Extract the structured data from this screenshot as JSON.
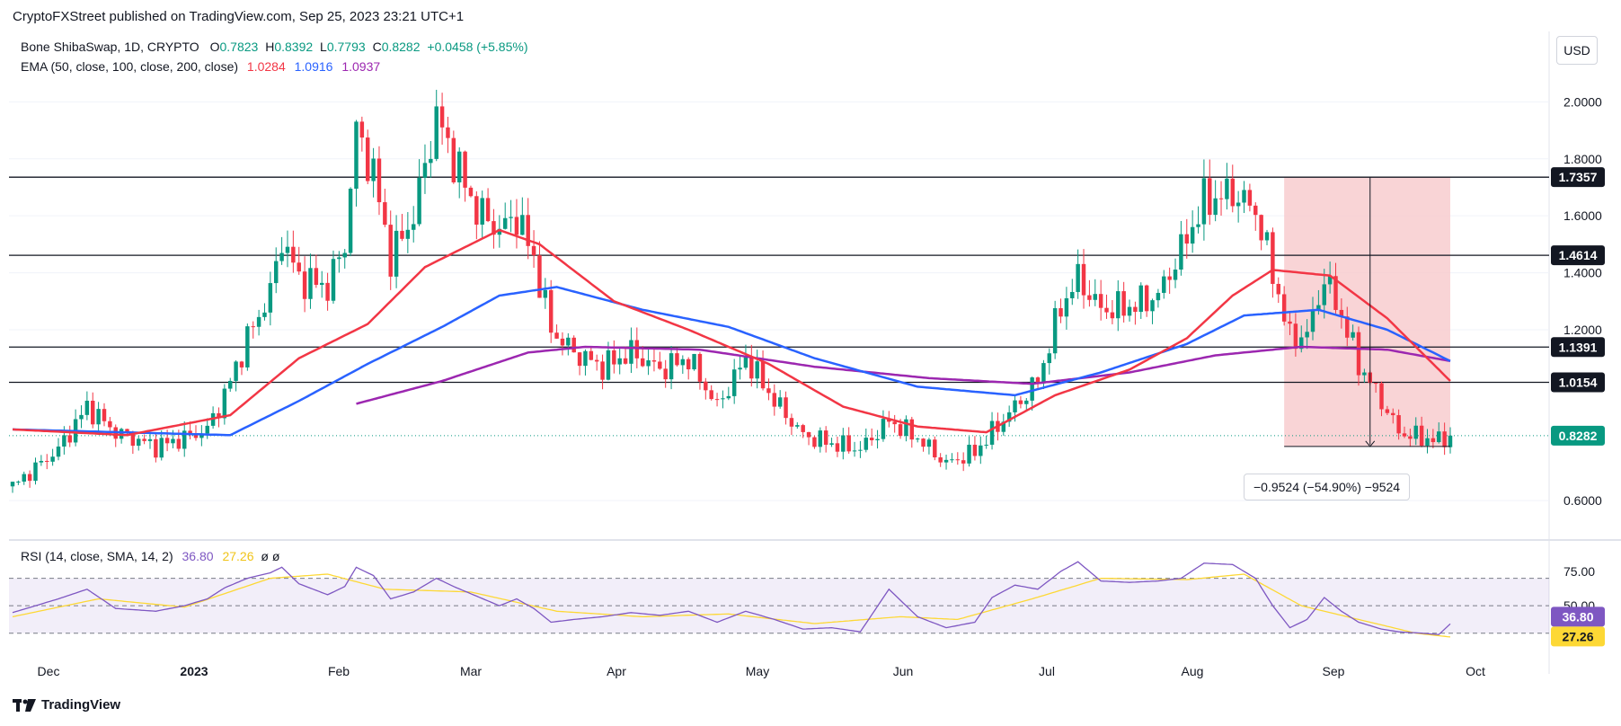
{
  "header": {
    "publisher": "CryptoFXStreet published on TradingView.com, Sep 25, 2023 23:21 UTC+1"
  },
  "legend": {
    "symbol": "Bone ShibaSwap, 1D, CRYPTO",
    "open_label": "O",
    "open": "0.7823",
    "high_label": "H",
    "high": "0.8392",
    "low_label": "L",
    "low": "0.7793",
    "close_label": "C",
    "close": "0.8282",
    "change": "+0.0458 (+5.85%)",
    "ema_label": "EMA (50, close, 100, close, 200, close)",
    "ema50": "1.0284",
    "ema100": "1.0916",
    "ema200": "1.0937",
    "rsi_label": "RSI (14, close, SMA, 14, 2)",
    "rsi_value": "36.80",
    "rsi_sma": "27.26",
    "rsi_extra": "ø ø"
  },
  "currency_button": "USD",
  "measure_label": "−0.9524 (−54.90%) −9524",
  "footer_brand": "TradingView",
  "colors": {
    "up": "#089981",
    "down": "#f23645",
    "ema50": "#f23645",
    "ema100": "#2962ff",
    "ema200": "#9c27b0",
    "rsi": "#7e57c2",
    "rsi_sma": "#fdd835",
    "measure_fill": "#f7c9cc"
  },
  "chart_data": {
    "type": "candlestick",
    "price_axis": {
      "ticks": [
        "2.0000",
        "1.8000",
        "1.6000",
        "1.4000",
        "1.2000",
        "0.6000"
      ],
      "ylim": [
        0.55,
        2.2
      ]
    },
    "rsi_axis": {
      "ticks": [
        "75.00",
        "50.00"
      ],
      "ylim": [
        20,
        90
      ]
    },
    "x_axis": {
      "ticks": [
        "Dec",
        "2023",
        "Feb",
        "Mar",
        "Apr",
        "May",
        "Jun",
        "Jul",
        "Aug",
        "Sep",
        "Oct"
      ]
    },
    "horizontal_levels": [
      "1.7357",
      "1.4614",
      "1.1391",
      "1.0154"
    ],
    "last_price": "0.8282",
    "last_rsi": "36.80",
    "last_rsi_sma": "27.26",
    "anchors": [
      {
        "d": 0,
        "c": 0.65
      },
      {
        "d": 8,
        "c": 0.78
      },
      {
        "d": 13,
        "c": 0.93
      },
      {
        "d": 18,
        "c": 0.84
      },
      {
        "d": 25,
        "c": 0.79
      },
      {
        "d": 30,
        "c": 0.82
      },
      {
        "d": 34,
        "c": 0.85
      },
      {
        "d": 37,
        "c": 0.97
      },
      {
        "d": 41,
        "c": 1.17
      },
      {
        "d": 45,
        "c": 1.33
      },
      {
        "d": 47,
        "c": 1.52
      },
      {
        "d": 50,
        "c": 1.38
      },
      {
        "d": 55,
        "c": 1.35
      },
      {
        "d": 58,
        "c": 1.5
      },
      {
        "d": 60,
        "c": 1.9
      },
      {
        "d": 63,
        "c": 1.75
      },
      {
        "d": 66,
        "c": 1.45
      },
      {
        "d": 70,
        "c": 1.6
      },
      {
        "d": 74,
        "c": 1.95
      },
      {
        "d": 77,
        "c": 1.8
      },
      {
        "d": 81,
        "c": 1.62
      },
      {
        "d": 85,
        "c": 1.55
      },
      {
        "d": 88,
        "c": 1.6
      },
      {
        "d": 91,
        "c": 1.45
      },
      {
        "d": 94,
        "c": 1.2
      },
      {
        "d": 98,
        "c": 1.12
      },
      {
        "d": 103,
        "c": 1.07
      },
      {
        "d": 108,
        "c": 1.12
      },
      {
        "d": 113,
        "c": 1.06
      },
      {
        "d": 118,
        "c": 1.1
      },
      {
        "d": 123,
        "c": 0.93
      },
      {
        "d": 128,
        "c": 1.1
      },
      {
        "d": 133,
        "c": 0.95
      },
      {
        "d": 138,
        "c": 0.83
      },
      {
        "d": 143,
        "c": 0.8
      },
      {
        "d": 148,
        "c": 0.78
      },
      {
        "d": 153,
        "c": 0.88
      },
      {
        "d": 158,
        "c": 0.82
      },
      {
        "d": 163,
        "c": 0.73
      },
      {
        "d": 168,
        "c": 0.77
      },
      {
        "d": 171,
        "c": 0.84
      },
      {
        "d": 175,
        "c": 0.93
      },
      {
        "d": 179,
        "c": 1.02
      },
      {
        "d": 183,
        "c": 1.28
      },
      {
        "d": 186,
        "c": 1.38
      },
      {
        "d": 190,
        "c": 1.27
      },
      {
        "d": 195,
        "c": 1.28
      },
      {
        "d": 200,
        "c": 1.32
      },
      {
        "d": 204,
        "c": 1.48
      },
      {
        "d": 208,
        "c": 1.65
      },
      {
        "d": 213,
        "c": 1.68
      },
      {
        "d": 217,
        "c": 1.62
      },
      {
        "d": 220,
        "c": 1.4
      },
      {
        "d": 223,
        "c": 1.17
      },
      {
        "d": 226,
        "c": 1.18
      },
      {
        "d": 229,
        "c": 1.38
      },
      {
        "d": 232,
        "c": 1.25
      },
      {
        "d": 235,
        "c": 1.08
      },
      {
        "d": 239,
        "c": 0.95
      },
      {
        "d": 242,
        "c": 0.84
      },
      {
        "d": 246,
        "c": 0.82
      },
      {
        "d": 249,
        "c": 0.81
      },
      {
        "d": 251,
        "c": 0.8282
      }
    ],
    "ema50_path": [
      {
        "d": 0,
        "c": 0.85
      },
      {
        "d": 20,
        "c": 0.83
      },
      {
        "d": 38,
        "c": 0.9
      },
      {
        "d": 50,
        "c": 1.1
      },
      {
        "d": 62,
        "c": 1.22
      },
      {
        "d": 72,
        "c": 1.42
      },
      {
        "d": 85,
        "c": 1.55
      },
      {
        "d": 92,
        "c": 1.5
      },
      {
        "d": 105,
        "c": 1.3
      },
      {
        "d": 118,
        "c": 1.2
      },
      {
        "d": 132,
        "c": 1.08
      },
      {
        "d": 145,
        "c": 0.93
      },
      {
        "d": 158,
        "c": 0.86
      },
      {
        "d": 170,
        "c": 0.84
      },
      {
        "d": 182,
        "c": 0.97
      },
      {
        "d": 195,
        "c": 1.06
      },
      {
        "d": 205,
        "c": 1.17
      },
      {
        "d": 213,
        "c": 1.32
      },
      {
        "d": 220,
        "c": 1.41
      },
      {
        "d": 230,
        "c": 1.39
      },
      {
        "d": 240,
        "c": 1.24
      },
      {
        "d": 251,
        "c": 1.02
      }
    ],
    "ema100_path": [
      {
        "d": 0,
        "c": 0.85
      },
      {
        "d": 38,
        "c": 0.83
      },
      {
        "d": 50,
        "c": 0.95
      },
      {
        "d": 62,
        "c": 1.08
      },
      {
        "d": 75,
        "c": 1.21
      },
      {
        "d": 85,
        "c": 1.32
      },
      {
        "d": 95,
        "c": 1.35
      },
      {
        "d": 110,
        "c": 1.27
      },
      {
        "d": 125,
        "c": 1.21
      },
      {
        "d": 140,
        "c": 1.1
      },
      {
        "d": 158,
        "c": 1.0
      },
      {
        "d": 175,
        "c": 0.97
      },
      {
        "d": 190,
        "c": 1.05
      },
      {
        "d": 205,
        "c": 1.15
      },
      {
        "d": 215,
        "c": 1.25
      },
      {
        "d": 228,
        "c": 1.27
      },
      {
        "d": 240,
        "c": 1.2
      },
      {
        "d": 251,
        "c": 1.09
      }
    ],
    "ema200_path": [
      {
        "d": 60,
        "c": 0.94
      },
      {
        "d": 75,
        "c": 1.02
      },
      {
        "d": 90,
        "c": 1.12
      },
      {
        "d": 100,
        "c": 1.14
      },
      {
        "d": 120,
        "c": 1.13
      },
      {
        "d": 140,
        "c": 1.07
      },
      {
        "d": 160,
        "c": 1.03
      },
      {
        "d": 178,
        "c": 1.01
      },
      {
        "d": 195,
        "c": 1.05
      },
      {
        "d": 210,
        "c": 1.11
      },
      {
        "d": 225,
        "c": 1.14
      },
      {
        "d": 240,
        "c": 1.13
      },
      {
        "d": 251,
        "c": 1.09
      }
    ],
    "rsi_anchors": [
      {
        "d": 0,
        "c": 45
      },
      {
        "d": 8,
        "c": 55
      },
      {
        "d": 13,
        "c": 62
      },
      {
        "d": 18,
        "c": 48
      },
      {
        "d": 25,
        "c": 46
      },
      {
        "d": 30,
        "c": 50
      },
      {
        "d": 34,
        "c": 55
      },
      {
        "d": 37,
        "c": 63
      },
      {
        "d": 41,
        "c": 70
      },
      {
        "d": 45,
        "c": 74
      },
      {
        "d": 47,
        "c": 78
      },
      {
        "d": 50,
        "c": 66
      },
      {
        "d": 55,
        "c": 58
      },
      {
        "d": 58,
        "c": 64
      },
      {
        "d": 60,
        "c": 78
      },
      {
        "d": 63,
        "c": 72
      },
      {
        "d": 66,
        "c": 55
      },
      {
        "d": 70,
        "c": 60
      },
      {
        "d": 74,
        "c": 70
      },
      {
        "d": 77,
        "c": 64
      },
      {
        "d": 81,
        "c": 57
      },
      {
        "d": 85,
        "c": 50
      },
      {
        "d": 88,
        "c": 55
      },
      {
        "d": 91,
        "c": 48
      },
      {
        "d": 94,
        "c": 38
      },
      {
        "d": 98,
        "c": 40
      },
      {
        "d": 103,
        "c": 42
      },
      {
        "d": 108,
        "c": 45
      },
      {
        "d": 113,
        "c": 43
      },
      {
        "d": 118,
        "c": 46
      },
      {
        "d": 123,
        "c": 38
      },
      {
        "d": 128,
        "c": 46
      },
      {
        "d": 133,
        "c": 40
      },
      {
        "d": 138,
        "c": 33
      },
      {
        "d": 143,
        "c": 34
      },
      {
        "d": 148,
        "c": 31
      },
      {
        "d": 153,
        "c": 62
      },
      {
        "d": 158,
        "c": 42
      },
      {
        "d": 163,
        "c": 34
      },
      {
        "d": 168,
        "c": 38
      },
      {
        "d": 171,
        "c": 56
      },
      {
        "d": 175,
        "c": 65
      },
      {
        "d": 179,
        "c": 62
      },
      {
        "d": 183,
        "c": 75
      },
      {
        "d": 186,
        "c": 82
      },
      {
        "d": 190,
        "c": 68
      },
      {
        "d": 195,
        "c": 67
      },
      {
        "d": 200,
        "c": 68
      },
      {
        "d": 204,
        "c": 70
      },
      {
        "d": 208,
        "c": 81
      },
      {
        "d": 213,
        "c": 80
      },
      {
        "d": 217,
        "c": 70
      },
      {
        "d": 220,
        "c": 50
      },
      {
        "d": 223,
        "c": 34
      },
      {
        "d": 226,
        "c": 40
      },
      {
        "d": 229,
        "c": 56
      },
      {
        "d": 232,
        "c": 46
      },
      {
        "d": 235,
        "c": 38
      },
      {
        "d": 239,
        "c": 33
      },
      {
        "d": 242,
        "c": 31
      },
      {
        "d": 246,
        "c": 30
      },
      {
        "d": 249,
        "c": 29
      },
      {
        "d": 251,
        "c": 36.8
      }
    ],
    "rsi_sma_path": [
      {
        "d": 0,
        "c": 42
      },
      {
        "d": 15,
        "c": 55
      },
      {
        "d": 30,
        "c": 49
      },
      {
        "d": 45,
        "c": 70
      },
      {
        "d": 55,
        "c": 73
      },
      {
        "d": 65,
        "c": 62
      },
      {
        "d": 80,
        "c": 60
      },
      {
        "d": 95,
        "c": 46
      },
      {
        "d": 110,
        "c": 42
      },
      {
        "d": 125,
        "c": 44
      },
      {
        "d": 140,
        "c": 37
      },
      {
        "d": 155,
        "c": 42
      },
      {
        "d": 165,
        "c": 40
      },
      {
        "d": 178,
        "c": 55
      },
      {
        "d": 190,
        "c": 70
      },
      {
        "d": 205,
        "c": 69
      },
      {
        "d": 215,
        "c": 73
      },
      {
        "d": 225,
        "c": 50
      },
      {
        "d": 235,
        "c": 40
      },
      {
        "d": 245,
        "c": 30
      },
      {
        "d": 251,
        "c": 27.26
      }
    ]
  }
}
